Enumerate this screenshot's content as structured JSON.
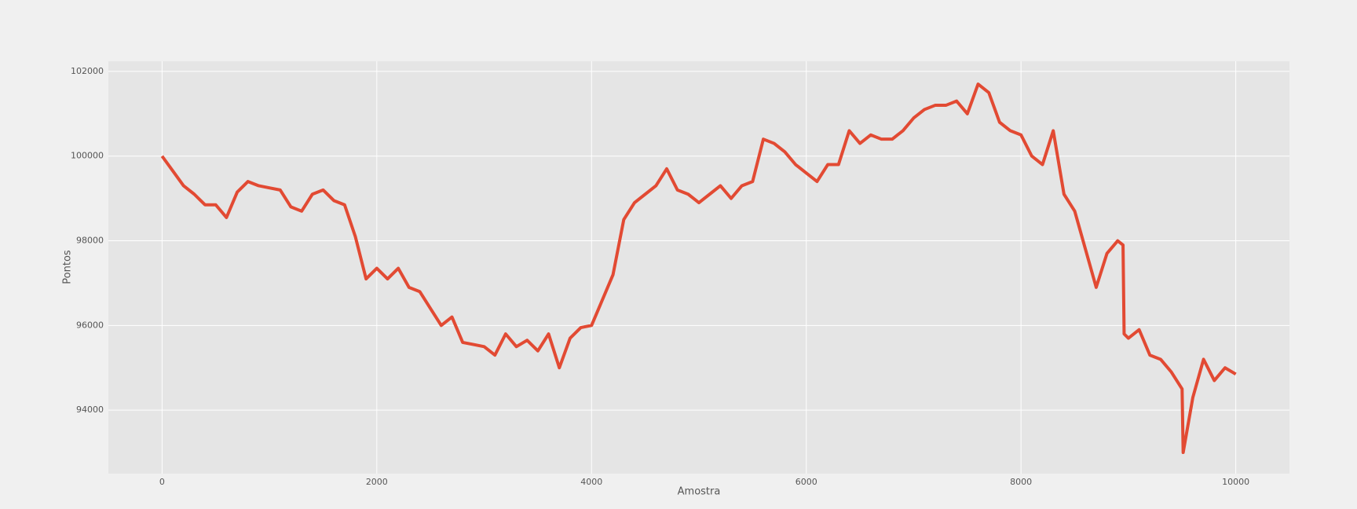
{
  "chart_data": {
    "type": "line",
    "xlabel": "Amostra",
    "ylabel": "Pontos",
    "color": "#E24A33",
    "grid": true,
    "xlim": [
      -500,
      10500
    ],
    "xticks": [
      0,
      2000,
      4000,
      6000,
      8000,
      10000
    ],
    "ylim": [
      92500,
      102240
    ],
    "yticks": [
      94000,
      96000,
      98000,
      100000,
      102000
    ],
    "x": [
      0,
      100,
      200,
      300,
      400,
      500,
      600,
      700,
      800,
      900,
      1000,
      1100,
      1200,
      1300,
      1400,
      1500,
      1600,
      1700,
      1800,
      1900,
      2000,
      2100,
      2200,
      2300,
      2400,
      2500,
      2600,
      2700,
      2800,
      2900,
      3000,
      3100,
      3200,
      3300,
      3400,
      3500,
      3600,
      3700,
      3800,
      3900,
      4000,
      4100,
      4200,
      4300,
      4400,
      4500,
      4600,
      4700,
      4800,
      4900,
      5000,
      5100,
      5200,
      5300,
      5400,
      5500,
      5600,
      5700,
      5800,
      5900,
      6000,
      6100,
      6200,
      6300,
      6400,
      6500,
      6600,
      6700,
      6800,
      6900,
      7000,
      7100,
      7200,
      7300,
      7400,
      7500,
      7600,
      7700,
      7800,
      7900,
      8000,
      8100,
      8200,
      8300,
      8400,
      8500,
      8600,
      8700,
      8800,
      8900,
      8950,
      8960,
      9000,
      9100,
      9200,
      9300,
      9400,
      9500,
      9510,
      9600,
      9700,
      9800,
      9900,
      10000
    ],
    "values": [
      100000,
      99650,
      99300,
      99100,
      98850,
      98850,
      98550,
      99150,
      99400,
      99300,
      99250,
      99200,
      98800,
      98700,
      99100,
      99200,
      98950,
      98850,
      98100,
      97100,
      97350,
      97100,
      97350,
      96900,
      96800,
      96400,
      96000,
      96200,
      95600,
      95550,
      95500,
      95300,
      95800,
      95500,
      95650,
      95400,
      95800,
      95000,
      95700,
      95950,
      96000,
      96600,
      97200,
      98500,
      98900,
      99100,
      99300,
      99700,
      99200,
      99100,
      98900,
      99100,
      99300,
      99000,
      99300,
      99400,
      100400,
      100300,
      100100,
      99800,
      99600,
      99400,
      99800,
      99800,
      100600,
      100300,
      100500,
      100400,
      100400,
      100600,
      100900,
      101100,
      101200,
      101200,
      101300,
      101000,
      101700,
      101500,
      100800,
      100600,
      100500,
      100000,
      99800,
      100600,
      99100,
      98700,
      97800,
      96900,
      97700,
      98000,
      97900,
      95800,
      95700,
      95900,
      95300,
      95200,
      94900,
      94500,
      93000,
      94300,
      95200,
      94700,
      95000,
      94850
    ]
  }
}
